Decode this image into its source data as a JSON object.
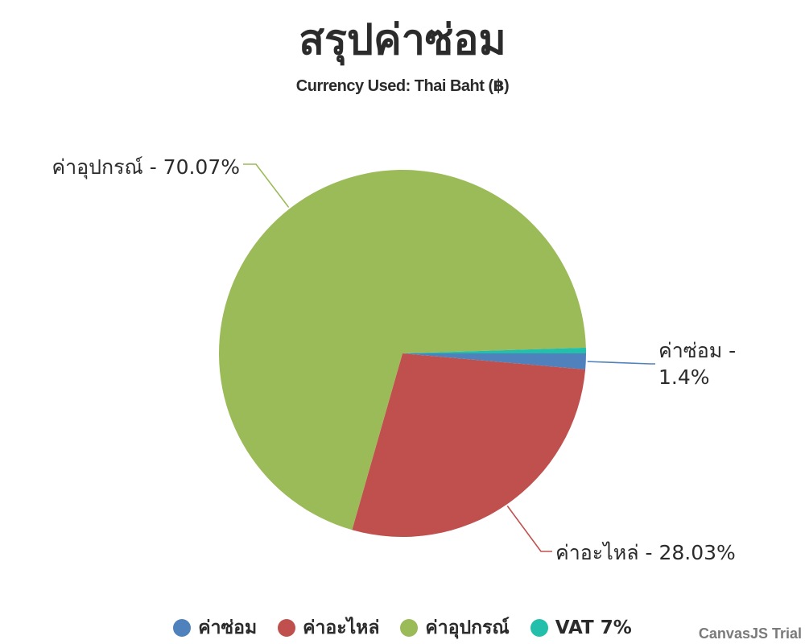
{
  "chart_data": {
    "type": "pie",
    "title": "สรุปค่าซ่อม",
    "subtitle": "Currency Used: Thai Baht (฿)",
    "slices": [
      {
        "name": "ค่าซ่อม",
        "percent": 1.4,
        "label": "ค่าซ่อม - 1.4%",
        "color": "#4F81BC"
      },
      {
        "name": "ค่าอะไหล่",
        "percent": 28.03,
        "label": "ค่าอะไหล่ - 28.03%",
        "color": "#C0504E"
      },
      {
        "name": "ค่าอุปกรณ์",
        "percent": 70.07,
        "label": "ค่าอุปกรณ์ - 70.07%",
        "color": "#9BBB58"
      },
      {
        "name": "VAT 7%",
        "percent": 0.5,
        "label": "",
        "color": "#23BFAA"
      }
    ],
    "legend_position": "bottom",
    "watermark": "CanvasJS Trial"
  }
}
